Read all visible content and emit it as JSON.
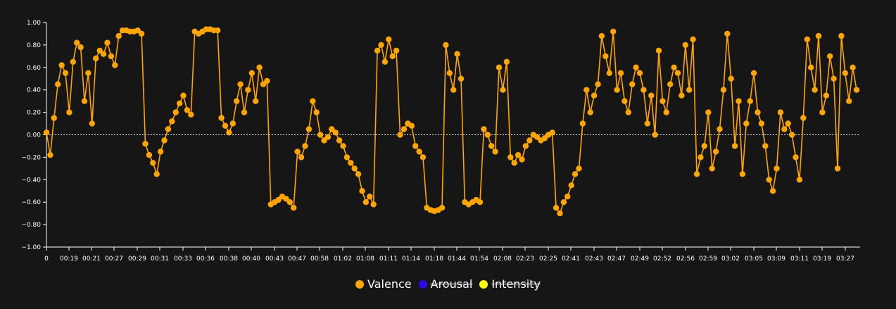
{
  "chart_data": {
    "type": "line",
    "title": "",
    "xlabel": "",
    "ylabel": "",
    "ylim": [
      -1.0,
      1.0
    ],
    "y_ticks": [
      "1.00",
      "0.80",
      "0.60",
      "0.40",
      "0.20",
      "0.00",
      "-0.20",
      "-0.40",
      "-0.60",
      "-0.80",
      "-1.00"
    ],
    "x_ticks": [
      "0",
      "00:19",
      "00:21",
      "00:27",
      "00:29",
      "00:31",
      "00:33",
      "00:36",
      "00:38",
      "00:40",
      "00:43",
      "00:47",
      "00:58",
      "01:02",
      "01:08",
      "01:11",
      "01:14",
      "01:18",
      "01:44",
      "01:54",
      "02:08",
      "02:23",
      "02:25",
      "02:41",
      "02:43",
      "02:47",
      "02:49",
      "02:52",
      "02:56",
      "02:59",
      "03:02",
      "03:05",
      "03:09",
      "03:11",
      "03:19",
      "03:27"
    ],
    "zero_line": true,
    "grid": false,
    "legend_position": "bottom-center",
    "series": [
      {
        "name": "Valence",
        "color": "#ffa500",
        "visible": true,
        "values": [
          0.02,
          -0.18,
          0.15,
          0.45,
          0.62,
          0.55,
          0.2,
          0.65,
          0.82,
          0.78,
          0.3,
          0.55,
          0.1,
          0.68,
          0.75,
          0.72,
          0.82,
          0.7,
          0.62,
          0.88,
          0.93,
          0.93,
          0.92,
          0.92,
          0.93,
          0.9,
          -0.08,
          -0.18,
          -0.25,
          -0.35,
          -0.15,
          -0.05,
          0.05,
          0.12,
          0.2,
          0.28,
          0.35,
          0.22,
          0.18,
          0.92,
          0.9,
          0.92,
          0.94,
          0.94,
          0.93,
          0.93,
          0.15,
          0.08,
          0.02,
          0.1,
          0.3,
          0.45,
          0.2,
          0.4,
          0.55,
          0.3,
          0.6,
          0.45,
          0.48,
          -0.62,
          -0.6,
          -0.58,
          -0.55,
          -0.57,
          -0.6,
          -0.65,
          -0.15,
          -0.2,
          -0.1,
          0.05,
          0.3,
          0.2,
          0.0,
          -0.05,
          -0.02,
          0.05,
          0.02,
          -0.05,
          -0.1,
          -0.2,
          -0.25,
          -0.3,
          -0.35,
          -0.5,
          -0.6,
          -0.55,
          -0.62,
          0.75,
          0.8,
          0.65,
          0.85,
          0.7,
          0.75,
          0.0,
          0.05,
          0.1,
          0.08,
          -0.1,
          -0.15,
          -0.2,
          -0.65,
          -0.67,
          -0.68,
          -0.67,
          -0.65,
          0.8,
          0.55,
          0.4,
          0.72,
          0.5,
          -0.6,
          -0.62,
          -0.6,
          -0.58,
          -0.6,
          0.05,
          0.0,
          -0.1,
          -0.15,
          0.6,
          0.4,
          0.65,
          -0.2,
          -0.25,
          -0.18,
          -0.22,
          -0.1,
          -0.05,
          0.0,
          -0.02,
          -0.05,
          -0.03,
          0.0,
          0.02,
          -0.65,
          -0.7,
          -0.6,
          -0.55,
          -0.45,
          -0.35,
          -0.3,
          0.1,
          0.4,
          0.2,
          0.35,
          0.45,
          0.88,
          0.7,
          0.55,
          0.92,
          0.4,
          0.55,
          0.3,
          0.2,
          0.45,
          0.6,
          0.55,
          0.4,
          0.1,
          0.35,
          0.0,
          0.75,
          0.3,
          0.2,
          0.45,
          0.6,
          0.55,
          0.35,
          0.8,
          0.4,
          0.85,
          -0.35,
          -0.2,
          -0.1,
          0.2,
          -0.3,
          -0.15,
          0.05,
          0.4,
          0.9,
          0.5,
          -0.1,
          0.3,
          -0.35,
          0.1,
          0.3,
          0.55,
          0.2,
          0.1,
          -0.1,
          -0.4,
          -0.5,
          -0.3,
          0.2,
          0.05,
          0.1,
          0.0,
          -0.2,
          -0.4,
          0.15,
          0.85,
          0.6,
          0.4,
          0.88,
          0.2,
          0.35,
          0.7,
          0.5,
          -0.3,
          0.88,
          0.55,
          0.3,
          0.6,
          0.4
        ]
      },
      {
        "name": "Arousal",
        "color": "#2b0be6",
        "visible": false,
        "values": []
      },
      {
        "name": "Intensity",
        "color": "#ffff00",
        "visible": false,
        "values": []
      }
    ]
  }
}
